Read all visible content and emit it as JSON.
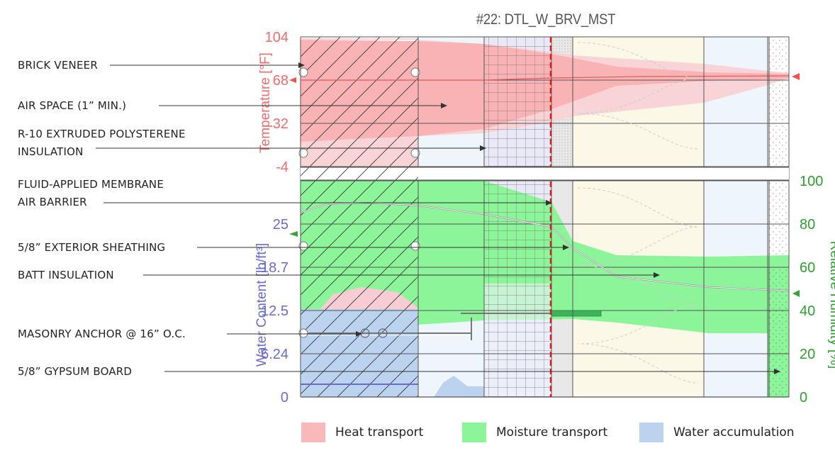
{
  "figure": {
    "title": "#22: DTL_W_BRV_MST",
    "temperature_axis": {
      "label": "Temperature [°F]",
      "ticks": [
        "104",
        "68",
        "32",
        "-4"
      ],
      "color": "#f26b6b"
    },
    "water_axis": {
      "label": "Water Content [lb/ft³]",
      "ticks": [
        "25",
        "18.7",
        "12.5",
        "6.24",
        "0"
      ],
      "color": "#6a6ad0"
    },
    "rh_axis": {
      "label": "Relative Humidity [%]",
      "ticks": [
        "100",
        "80",
        "60",
        "40",
        "20",
        "0"
      ],
      "color": "#2e9e2e"
    }
  },
  "layers": [
    {
      "label_lines": [
        "BRICK VENEER"
      ]
    },
    {
      "label_lines": [
        "AIR SPACE (1” MIN.)"
      ]
    },
    {
      "label_lines": [
        "R-10 EXTRUDED POLYSTERENE",
        "INSULATION"
      ]
    },
    {
      "label_lines": [
        "FLUID-APPLIED MEMBRANE",
        "AIR BARRIER"
      ]
    },
    {
      "label_lines": [
        "5/8” EXTERIOR SHEATHING"
      ]
    },
    {
      "label_lines": [
        "BATT INSULATION"
      ]
    },
    {
      "label_lines": [
        "MASONRY ANCHOR @ 16” O.C."
      ]
    },
    {
      "label_lines": [
        "5/8” GYPSUM BOARD"
      ]
    }
  ],
  "legend": [
    {
      "label": "Heat transport",
      "color": "#f9b9bb"
    },
    {
      "label": "Moisture transport",
      "color": "#8cf59a"
    },
    {
      "label": "Water accumulation",
      "color": "#bcd3ef"
    }
  ]
}
